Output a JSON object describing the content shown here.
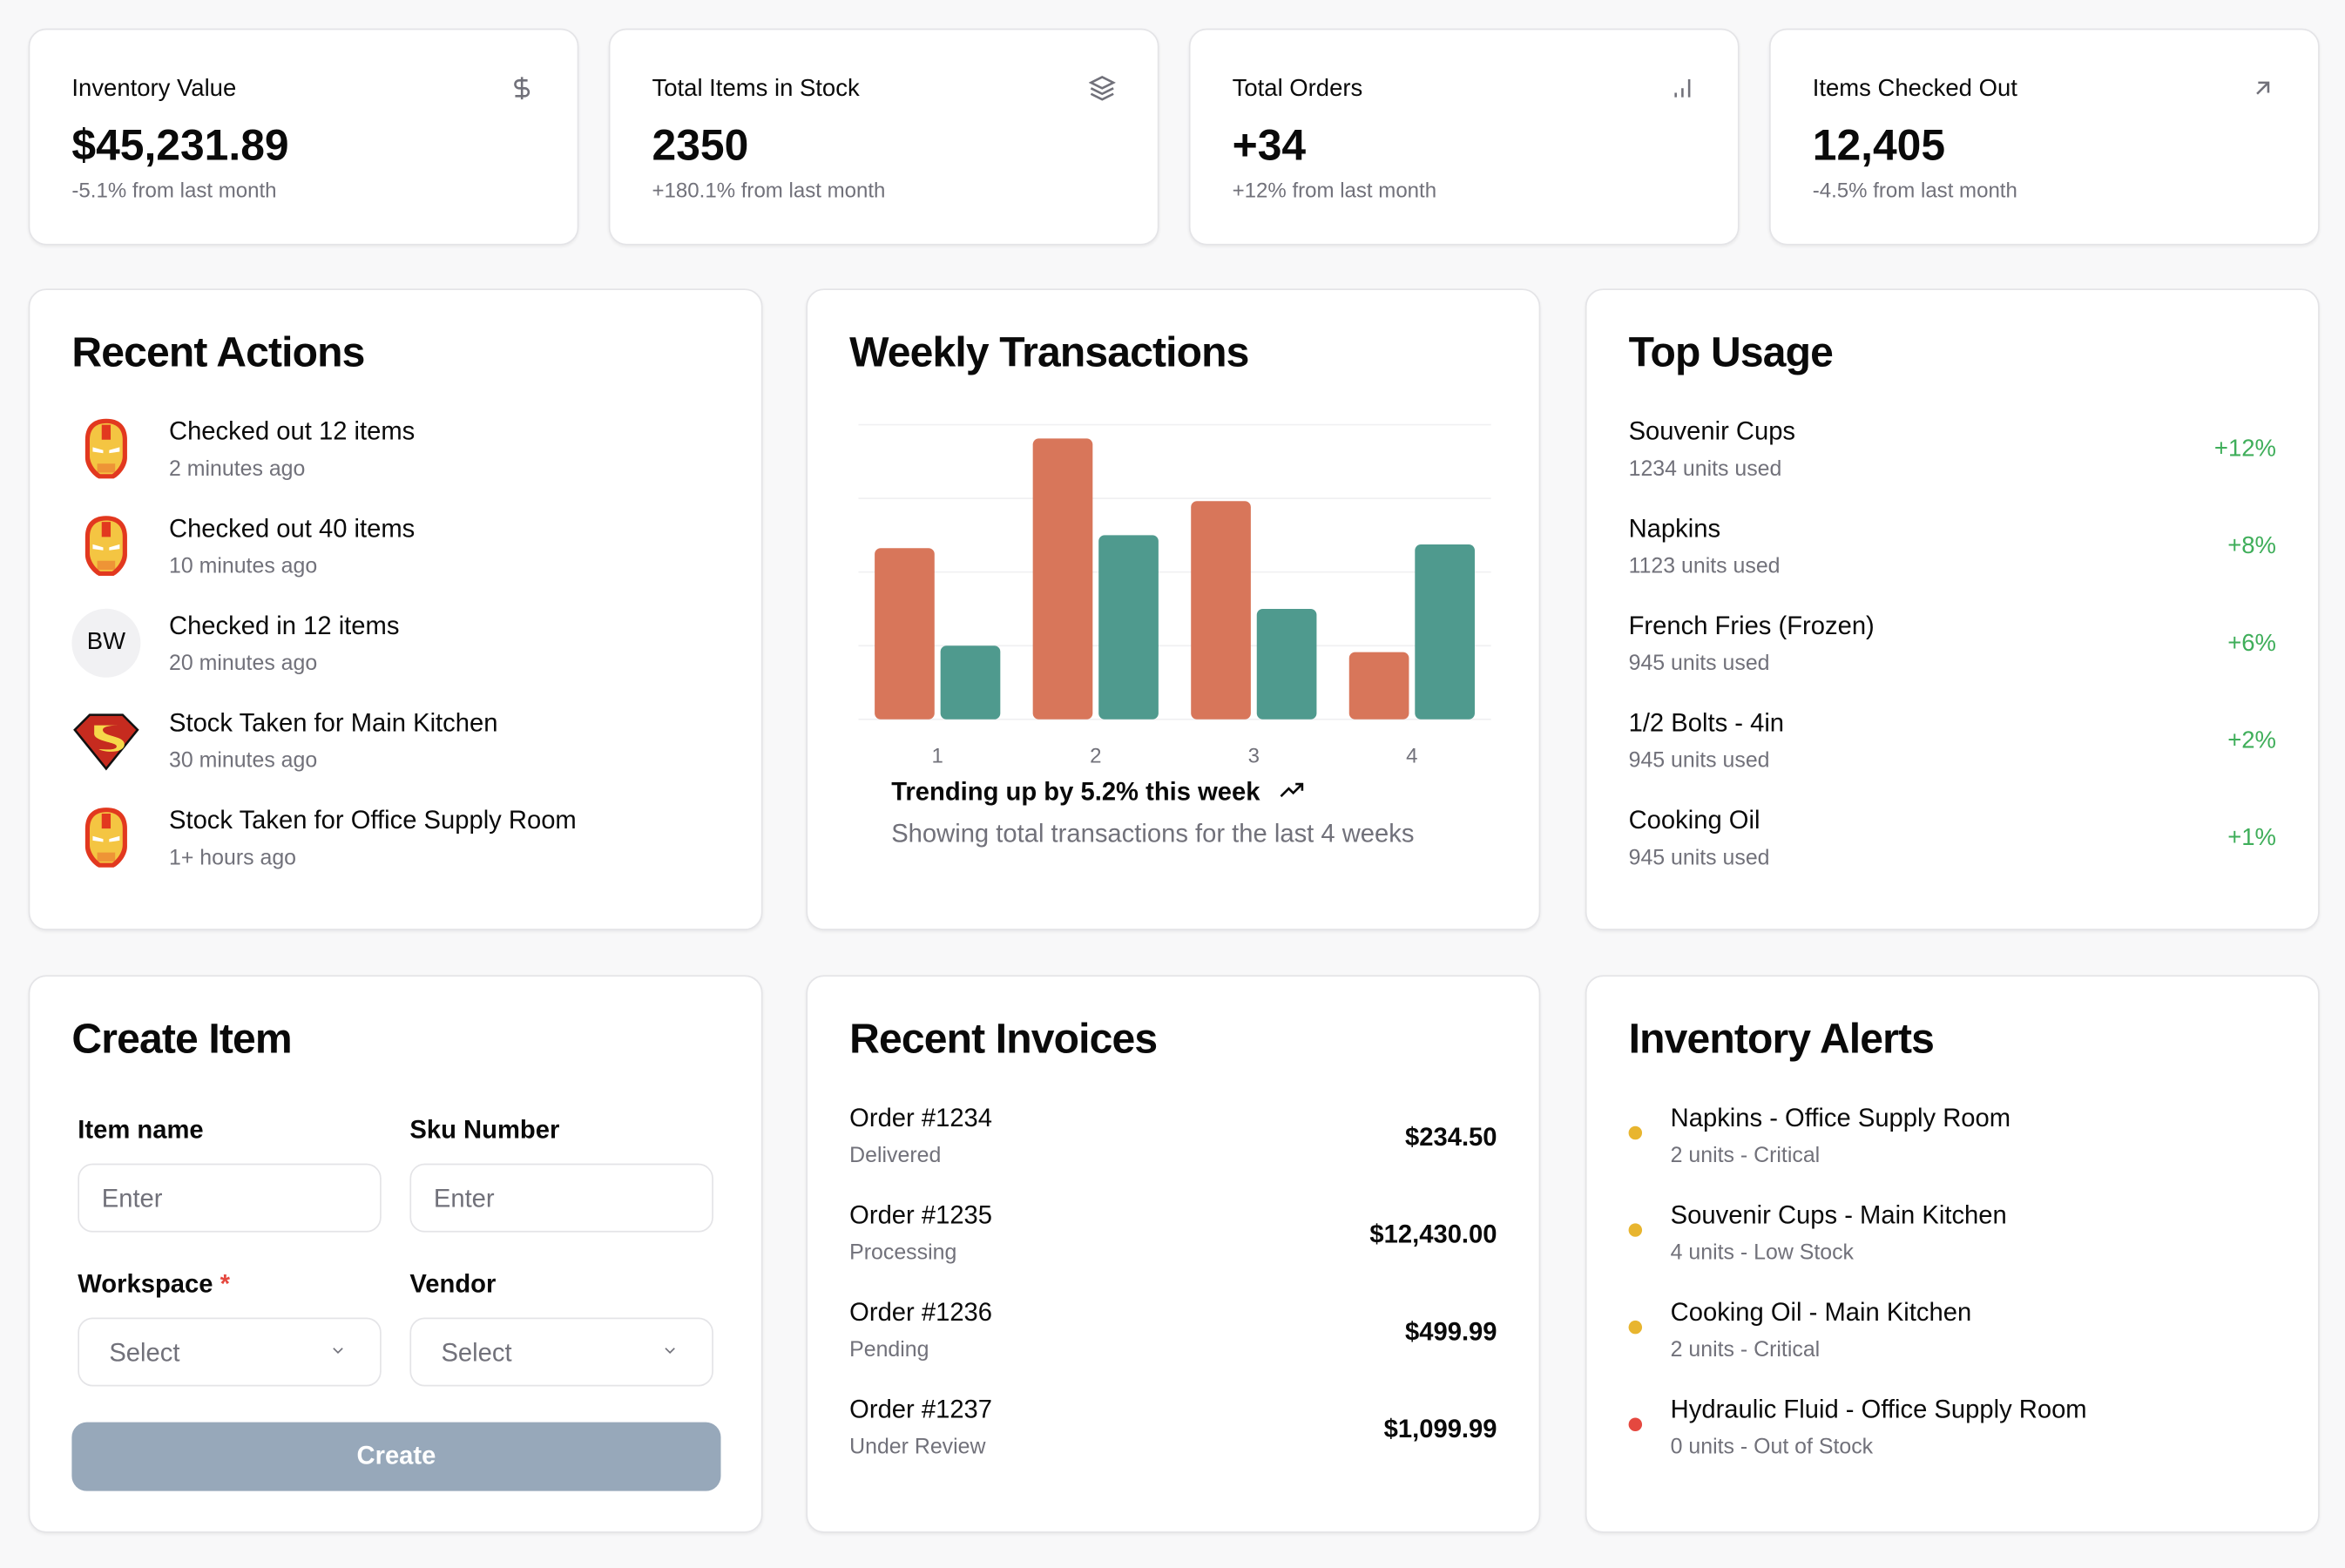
{
  "stats": [
    {
      "title": "Inventory Value",
      "value": "$45,231.89",
      "sub": "-5.1% from last month",
      "icon": "dollar-icon"
    },
    {
      "title": "Total Items in Stock",
      "value": "2350",
      "sub": "+180.1% from last month",
      "icon": "layers-icon"
    },
    {
      "title": "Total Orders",
      "value": "+34",
      "sub": "+12% from last month",
      "icon": "bar-chart-icon"
    },
    {
      "title": "Items Checked Out",
      "value": "12,405",
      "sub": "-4.5% from last month",
      "icon": "arrow-up-right-icon"
    }
  ],
  "recent_actions": {
    "title": "Recent Actions",
    "items": [
      {
        "action": "Checked out 12 items",
        "time": "2 minutes ago",
        "avatar": "ironman-icon"
      },
      {
        "action": "Checked out 40 items",
        "time": "10 minutes ago",
        "avatar": "ironman-icon"
      },
      {
        "action": "Checked in 12 items",
        "time": "20 minutes ago",
        "avatar": "BW"
      },
      {
        "action": "Stock Taken for Main Kitchen",
        "time": "30 minutes ago",
        "avatar": "superman-icon"
      },
      {
        "action": "Stock Taken for Office Supply Room",
        "time": "1+ hours ago",
        "avatar": "ironman-icon"
      }
    ]
  },
  "weekly": {
    "title": "Weekly Transactions",
    "trend": "Trending up by 5.2% this week",
    "caption": "Showing total transactions for the last 4 weeks"
  },
  "chart_data": {
    "type": "bar",
    "categories": [
      "1",
      "2",
      "3",
      "4"
    ],
    "series": [
      {
        "name": "series-1",
        "color": "#d8765a",
        "values": [
          186,
          305,
          237,
          73
        ]
      },
      {
        "name": "series-2",
        "color": "#4f9a8e",
        "values": [
          80,
          200,
          120,
          190
        ]
      }
    ],
    "ylim": [
      0,
      320
    ],
    "grid": true,
    "gridlines": [
      0,
      80,
      160,
      240,
      320
    ]
  },
  "top_usage": {
    "title": "Top Usage",
    "items": [
      {
        "name": "Souvenir Cups",
        "used": "1234 units used",
        "pct": "+12%"
      },
      {
        "name": "Napkins",
        "used": "1123 units used",
        "pct": "+8%"
      },
      {
        "name": "French Fries (Frozen)",
        "used": "945 units used",
        "pct": "+6%"
      },
      {
        "name": "1/2 Bolts - 4in",
        "used": "945 units used",
        "pct": "+2%"
      },
      {
        "name": "Cooking Oil",
        "used": "945 units used",
        "pct": "+1%"
      }
    ]
  },
  "create_item": {
    "title": "Create Item",
    "item_name_label": "Item name",
    "item_name_placeholder": "Enter",
    "sku_label": "Sku Number",
    "sku_placeholder": "Enter",
    "workspace_label": "Workspace",
    "required_mark": "*",
    "workspace_value": "Select",
    "vendor_label": "Vendor",
    "vendor_value": "Select",
    "create_label": "Create"
  },
  "invoices": {
    "title": "Recent Invoices",
    "items": [
      {
        "order": "Order #1234",
        "status": "Delivered",
        "amount": "$234.50"
      },
      {
        "order": "Order #1235",
        "status": "Processing",
        "amount": "$12,430.00"
      },
      {
        "order": "Order #1236",
        "status": "Pending",
        "amount": "$499.99"
      },
      {
        "order": "Order #1237",
        "status": "Under Review",
        "amount": "$1,099.99"
      }
    ]
  },
  "alerts": {
    "title": "Inventory Alerts",
    "items": [
      {
        "name": "Napkins - Office Supply Room",
        "detail": "2 units - Critical",
        "color": "#e8b52f"
      },
      {
        "name": "Souvenir Cups - Main Kitchen",
        "detail": "4 units - Low Stock",
        "color": "#e8b52f"
      },
      {
        "name": "Cooking Oil - Main Kitchen",
        "detail": "2 units - Critical",
        "color": "#e8b52f"
      },
      {
        "name": "Hydraulic Fluid - Office Supply Room",
        "detail": "0 units - Out of Stock",
        "color": "#e5483f"
      }
    ]
  }
}
